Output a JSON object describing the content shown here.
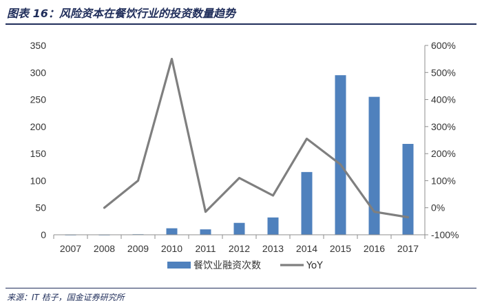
{
  "header": {
    "title": "图表 16：风险资本在餐饮行业的投资数量趋势",
    "source": "来源：IT 桔子，国金证券研究所"
  },
  "colors": {
    "bar": "#4f81bd",
    "line": "#7f7f7f",
    "text": "#1f2d5a",
    "axis": "#8c8c8c"
  },
  "chart_data": {
    "type": "bar",
    "categories": [
      "2007",
      "2008",
      "2009",
      "2010",
      "2011",
      "2012",
      "2013",
      "2014",
      "2015",
      "2016",
      "2017"
    ],
    "series": [
      {
        "name": "餐饮业融资次数",
        "type": "bar",
        "axis": "left",
        "values": [
          0,
          0,
          1,
          12,
          10,
          22,
          32,
          116,
          295,
          255,
          168
        ]
      },
      {
        "name": "YoY",
        "type": "line",
        "axis": "right",
        "values": [
          null,
          0,
          100,
          550,
          -15,
          110,
          45,
          255,
          160,
          -15,
          -35
        ]
      }
    ],
    "y_left": {
      "ylim": [
        0,
        350
      ],
      "ticks": [
        "0",
        "50",
        "100",
        "150",
        "200",
        "250",
        "300",
        "350"
      ]
    },
    "y_right": {
      "ylim": [
        -100,
        600
      ],
      "ticks": [
        "-100%",
        "0%",
        "100%",
        "200%",
        "300%",
        "400%",
        "500%",
        "600%"
      ]
    },
    "legend": {
      "position": "bottom",
      "entries": [
        "餐饮业融资次数",
        "YoY"
      ]
    },
    "grid": false
  }
}
